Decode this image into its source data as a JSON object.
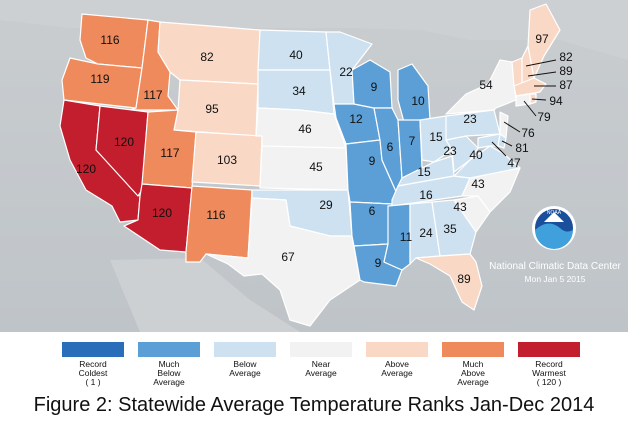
{
  "colors": {
    "record_coldest": "#2a6db8",
    "much_below": "#5b9fd6",
    "below": "#cde1f1",
    "near": "#f2f2f2",
    "above": "#f9d9c6",
    "much_above": "#ef8a5c",
    "record_warmest": "#c21e2d",
    "background_land": "#c8cbce",
    "water": "#c8cbce"
  },
  "states": [
    {
      "id": "WA",
      "rank": "116",
      "category": "much_above"
    },
    {
      "id": "OR",
      "rank": "119",
      "category": "much_above"
    },
    {
      "id": "ID",
      "rank": "117",
      "category": "much_above"
    },
    {
      "id": "MT",
      "rank": "82",
      "category": "above"
    },
    {
      "id": "WY",
      "rank": "95",
      "category": "above"
    },
    {
      "id": "CA",
      "rank": "120",
      "category": "record_warmest"
    },
    {
      "id": "NV",
      "rank": "120",
      "category": "record_warmest"
    },
    {
      "id": "UT",
      "rank": "117",
      "category": "much_above"
    },
    {
      "id": "AZ",
      "rank": "120",
      "category": "record_warmest"
    },
    {
      "id": "CO",
      "rank": "103",
      "category": "above"
    },
    {
      "id": "NM",
      "rank": "116",
      "category": "much_above"
    },
    {
      "id": "ND",
      "rank": "40",
      "category": "below"
    },
    {
      "id": "SD",
      "rank": "34",
      "category": "below"
    },
    {
      "id": "NE",
      "rank": "46",
      "category": "near"
    },
    {
      "id": "KS",
      "rank": "45",
      "category": "near"
    },
    {
      "id": "OK",
      "rank": "29",
      "category": "below"
    },
    {
      "id": "TX",
      "rank": "67",
      "category": "near"
    },
    {
      "id": "MN",
      "rank": "22",
      "category": "below"
    },
    {
      "id": "IA",
      "rank": "12",
      "category": "much_below"
    },
    {
      "id": "MO",
      "rank": "9",
      "category": "much_below"
    },
    {
      "id": "AR",
      "rank": "6",
      "category": "much_below"
    },
    {
      "id": "LA",
      "rank": "9",
      "category": "much_below"
    },
    {
      "id": "WI",
      "rank": "9",
      "category": "much_below"
    },
    {
      "id": "IL",
      "rank": "6",
      "category": "much_below"
    },
    {
      "id": "MI",
      "rank": "10",
      "category": "much_below"
    },
    {
      "id": "IN",
      "rank": "7",
      "category": "much_below"
    },
    {
      "id": "OH",
      "rank": "15",
      "category": "below"
    },
    {
      "id": "KY",
      "rank": "15",
      "category": "below"
    },
    {
      "id": "TN",
      "rank": "16",
      "category": "below"
    },
    {
      "id": "MS",
      "rank": "11",
      "category": "much_below"
    },
    {
      "id": "AL",
      "rank": "24",
      "category": "below"
    },
    {
      "id": "GA",
      "rank": "35",
      "category": "below"
    },
    {
      "id": "FL",
      "rank": "89",
      "category": "above"
    },
    {
      "id": "SC",
      "rank": "43",
      "category": "near"
    },
    {
      "id": "NC",
      "rank": "43",
      "category": "near"
    },
    {
      "id": "VA",
      "rank": "40",
      "category": "below"
    },
    {
      "id": "WV",
      "rank": "23",
      "category": "below"
    },
    {
      "id": "PA",
      "rank": "23",
      "category": "below"
    },
    {
      "id": "NY",
      "rank": "54",
      "category": "near"
    },
    {
      "id": "ME",
      "rank": "97",
      "category": "above"
    },
    {
      "id": "VT",
      "rank": "",
      "category": "above"
    },
    {
      "id": "NH",
      "rank": "",
      "category": "above"
    },
    {
      "id": "MA",
      "rank": "",
      "category": "above"
    },
    {
      "id": "CT",
      "rank": "",
      "category": "near"
    },
    {
      "id": "RI",
      "rank": "",
      "category": "above"
    },
    {
      "id": "NJ",
      "rank": "",
      "category": "near"
    },
    {
      "id": "DE",
      "rank": "",
      "category": "below"
    },
    {
      "id": "MD",
      "rank": "",
      "category": "below"
    }
  ],
  "ne_callouts": [
    "82",
    "89",
    "87",
    "94",
    "79",
    "76",
    "81",
    "47"
  ],
  "agency": {
    "name": "National Climatic Data Center",
    "date": "Mon Jan  5 2015",
    "logo_text": "NOAA"
  },
  "legend": [
    {
      "key": "record_coldest",
      "lines": [
        "Record",
        "Coldest",
        "( 1 )"
      ]
    },
    {
      "key": "much_below",
      "lines": [
        "Much",
        "Below",
        "Average"
      ]
    },
    {
      "key": "below",
      "lines": [
        "Below",
        "Average"
      ]
    },
    {
      "key": "near",
      "lines": [
        "Near",
        "Average"
      ]
    },
    {
      "key": "above",
      "lines": [
        "Above",
        "Average"
      ]
    },
    {
      "key": "much_above",
      "lines": [
        "Much",
        "Above",
        "Average"
      ]
    },
    {
      "key": "record_warmest",
      "lines": [
        "Record",
        "Warmest",
        "( 120 )"
      ]
    }
  ],
  "caption": "Figure 2: Statewide Average Temperature Ranks Jan-Dec 2014"
}
